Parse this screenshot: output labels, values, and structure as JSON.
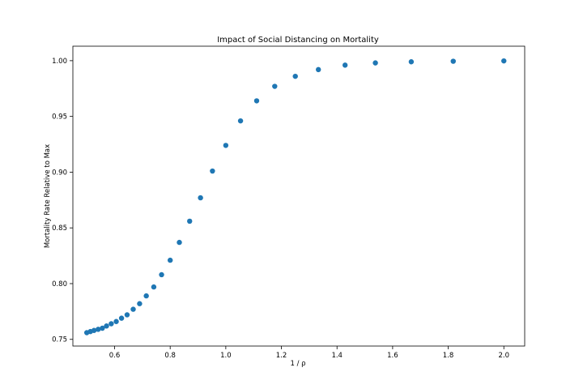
{
  "chart_data": {
    "type": "scatter",
    "title": "Impact of Social Distancing on Mortality",
    "xlabel": "1 / ρ",
    "ylabel": "Mortality Rate Relative to Max",
    "xlim": [
      0.45,
      2.075
    ],
    "ylim": [
      0.744,
      1.013
    ],
    "xticks": [
      0.6,
      0.8,
      1.0,
      1.2,
      1.4,
      1.6,
      1.8,
      2.0
    ],
    "xtick_labels": [
      "0.6",
      "0.8",
      "1.0",
      "1.2",
      "1.4",
      "1.6",
      "1.8",
      "2.0"
    ],
    "yticks": [
      0.75,
      0.8,
      0.85,
      0.9,
      0.95,
      1.0
    ],
    "ytick_labels": [
      "0.75",
      "0.80",
      "0.85",
      "0.90",
      "0.95",
      "1.00"
    ],
    "grid": false,
    "color": "#1f77b4",
    "points": [
      {
        "x": 0.5,
        "y": 0.756
      },
      {
        "x": 0.513,
        "y": 0.757
      },
      {
        "x": 0.526,
        "y": 0.758
      },
      {
        "x": 0.541,
        "y": 0.759
      },
      {
        "x": 0.556,
        "y": 0.76
      },
      {
        "x": 0.571,
        "y": 0.762
      },
      {
        "x": 0.588,
        "y": 0.764
      },
      {
        "x": 0.606,
        "y": 0.766
      },
      {
        "x": 0.625,
        "y": 0.769
      },
      {
        "x": 0.645,
        "y": 0.772
      },
      {
        "x": 0.667,
        "y": 0.777
      },
      {
        "x": 0.69,
        "y": 0.782
      },
      {
        "x": 0.714,
        "y": 0.789
      },
      {
        "x": 0.741,
        "y": 0.797
      },
      {
        "x": 0.769,
        "y": 0.808
      },
      {
        "x": 0.8,
        "y": 0.821
      },
      {
        "x": 0.833,
        "y": 0.837
      },
      {
        "x": 0.87,
        "y": 0.856
      },
      {
        "x": 0.909,
        "y": 0.877
      },
      {
        "x": 0.952,
        "y": 0.901
      },
      {
        "x": 1.0,
        "y": 0.924
      },
      {
        "x": 1.053,
        "y": 0.946
      },
      {
        "x": 1.111,
        "y": 0.964
      },
      {
        "x": 1.176,
        "y": 0.977
      },
      {
        "x": 1.25,
        "y": 0.986
      },
      {
        "x": 1.333,
        "y": 0.992
      },
      {
        "x": 1.429,
        "y": 0.996
      },
      {
        "x": 1.538,
        "y": 0.998
      },
      {
        "x": 1.667,
        "y": 0.999
      },
      {
        "x": 1.818,
        "y": 0.9995
      },
      {
        "x": 2.0,
        "y": 0.9998
      }
    ]
  }
}
